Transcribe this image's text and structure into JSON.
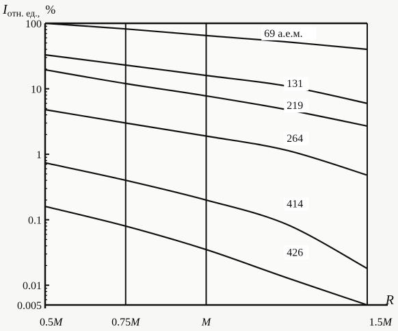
{
  "chart_data": {
    "type": "line",
    "ylabel": "I",
    "ylabel_subscript": "отн. ед.,",
    "ylabel_unit": "%",
    "xlabel": "R",
    "y_scale": "log",
    "ylim": [
      0.005,
      100
    ],
    "xlim": [
      0.5,
      1.5
    ],
    "x_ticks": [
      {
        "value": 0.5,
        "label": "0.5",
        "suffix": "M"
      },
      {
        "value": 0.75,
        "label": "0.75",
        "suffix": "M"
      },
      {
        "value": 1.0,
        "label": "",
        "suffix": "M"
      },
      {
        "value": 1.5,
        "label": "1.5",
        "suffix": "M"
      }
    ],
    "y_ticks": [
      {
        "value": 100,
        "label": "100"
      },
      {
        "value": 10,
        "label": "10"
      },
      {
        "value": 1,
        "label": "1"
      },
      {
        "value": 0.1,
        "label": "0.1"
      },
      {
        "value": 0.01,
        "label": "0.01"
      },
      {
        "value": 0.005,
        "label": "0.005"
      }
    ],
    "grid": "vertical lines at x ticks",
    "series": [
      {
        "name": "69 а.е.м.",
        "x": [
          0.5,
          0.75,
          1.0,
          1.25,
          1.5
        ],
        "y": [
          100,
          82,
          65,
          52,
          40
        ]
      },
      {
        "name": "131",
        "x": [
          0.5,
          0.75,
          1.0,
          1.25,
          1.5
        ],
        "y": [
          33,
          23,
          16,
          11,
          6
        ]
      },
      {
        "name": "219",
        "x": [
          0.5,
          0.75,
          1.0,
          1.25,
          1.5
        ],
        "y": [
          19.5,
          12,
          7.8,
          4.8,
          2.7
        ]
      },
      {
        "name": "264",
        "x": [
          0.5,
          0.75,
          1.0,
          1.25,
          1.5
        ],
        "y": [
          4.8,
          3,
          1.9,
          1.15,
          0.48
        ]
      },
      {
        "name": "414",
        "x": [
          0.5,
          0.75,
          1.0,
          1.25,
          1.5
        ],
        "y": [
          0.74,
          0.4,
          0.2,
          0.085,
          0.018
        ]
      },
      {
        "name": "426",
        "x": [
          0.5,
          0.75,
          1.0,
          1.25,
          1.5
        ],
        "y": [
          0.16,
          0.08,
          0.035,
          0.013,
          0.005
        ]
      }
    ]
  }
}
